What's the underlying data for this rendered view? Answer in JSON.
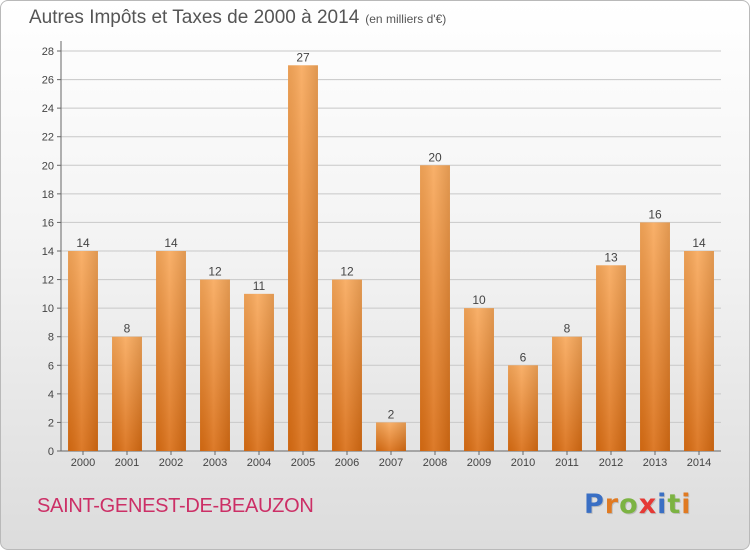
{
  "chart_data": {
    "type": "bar",
    "title": "Autres Impôts et Taxes de 2000 à 2014",
    "subtitle": "(en milliers d'€)",
    "categories": [
      "2000",
      "2001",
      "2002",
      "2003",
      "2004",
      "2005",
      "2006",
      "2007",
      "2008",
      "2009",
      "2010",
      "2011",
      "2012",
      "2013",
      "2014"
    ],
    "values": [
      14,
      8,
      14,
      12,
      11,
      27,
      12,
      2,
      20,
      10,
      6,
      8,
      13,
      16,
      14
    ],
    "ylim": [
      0,
      28
    ],
    "yticks": [
      0,
      2,
      4,
      6,
      8,
      10,
      12,
      14,
      16,
      18,
      20,
      22,
      24,
      26,
      28
    ],
    "grid": true,
    "bar_color": "#f0922e"
  },
  "footer": {
    "commune": "SAINT-GENEST-DE-BEAUZON",
    "commune_color": "#cc2f66"
  },
  "logo": {
    "text": "Proxiti",
    "letters": [
      {
        "char": "P",
        "color": "#3a6fc4"
      },
      {
        "char": "r",
        "color": "#e07a22"
      },
      {
        "char": "o",
        "color": "#7cb342"
      },
      {
        "char": "x",
        "color": "#e53935"
      },
      {
        "char": "i",
        "color": "#3a6fc4"
      },
      {
        "char": "t",
        "color": "#7cb342"
      },
      {
        "char": "i",
        "color": "#e07a22"
      }
    ]
  }
}
